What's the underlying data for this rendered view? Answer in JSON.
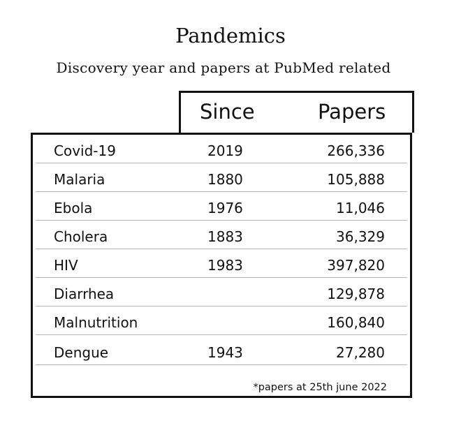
{
  "title": "Pandemics",
  "subtitle": "Discovery year and papers at PubMed related",
  "chart_data": {
    "type": "table",
    "columns": [
      "",
      "Since",
      "Papers"
    ],
    "rows": [
      {
        "name": "Covid-19",
        "since": "2019",
        "papers": "266,336"
      },
      {
        "name": "Malaria",
        "since": "1880",
        "papers": "105,888"
      },
      {
        "name": "Ebola",
        "since": "1976",
        "papers": "11,046"
      },
      {
        "name": "Cholera",
        "since": "1883",
        "papers": "36,329"
      },
      {
        "name": "HIV",
        "since": "1983",
        "papers": "397,820"
      },
      {
        "name": "Diarrhea",
        "since": "",
        "papers": "129,878"
      },
      {
        "name": "Malnutrition",
        "since": "",
        "papers": "160,840"
      },
      {
        "name": "Dengue",
        "since": "1943",
        "papers": "27,280"
      }
    ],
    "footnote": "*papers at 25th june 2022"
  }
}
